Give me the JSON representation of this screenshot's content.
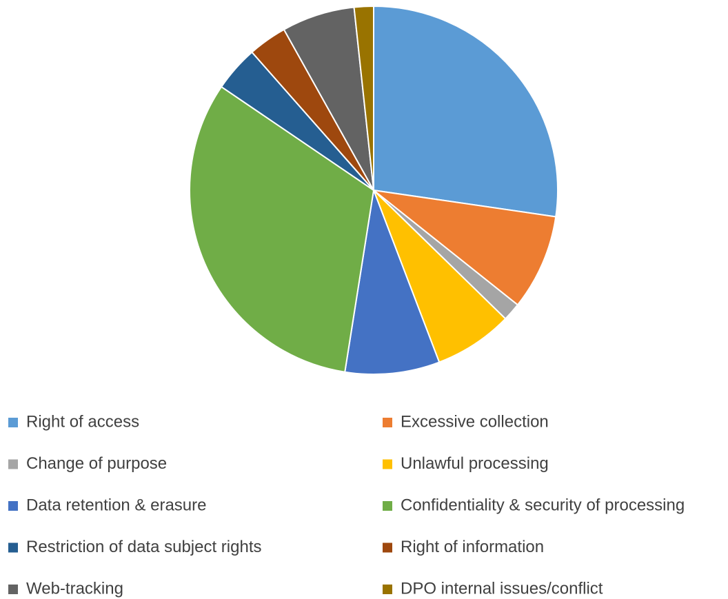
{
  "chart_data": {
    "type": "pie",
    "categories": [
      "Right of access",
      "Excessive collection",
      "Change of purpose",
      "Unlawful processing",
      "Data retention & erasure",
      "Confidentiality & security of processing",
      "Restriction of data subject rights",
      "Right of information",
      "Web-tracking",
      "DPO internal issues/conflict"
    ],
    "values": [
      27.3,
      8.4,
      1.6,
      6.9,
      8.3,
      32,
      4,
      3.4,
      6.4,
      1.7
    ],
    "colors": [
      "#5b9bd5",
      "#ed7d31",
      "#a5a5a5",
      "#ffc000",
      "#4472c4",
      "#70ad47",
      "#255e91",
      "#9e480e",
      "#636363",
      "#997300"
    ],
    "legend": "bottom"
  }
}
